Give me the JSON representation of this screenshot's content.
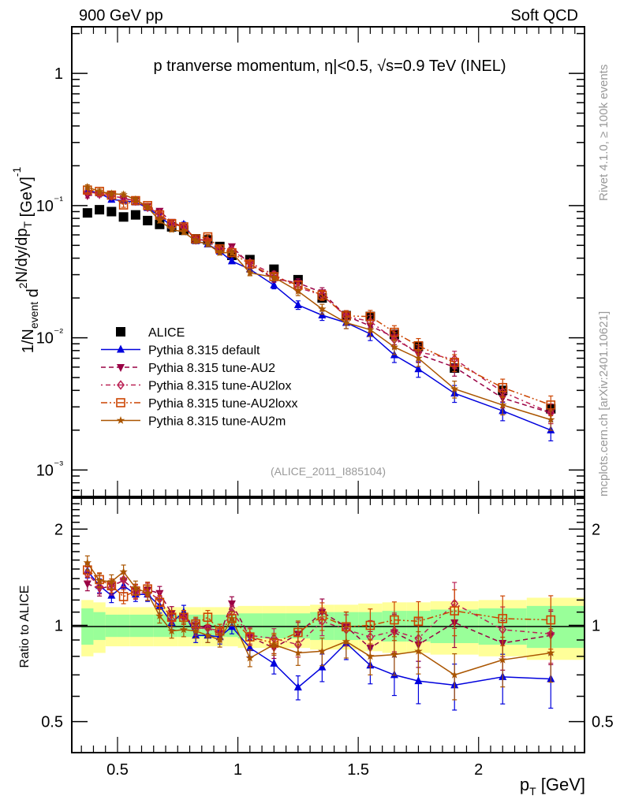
{
  "header": {
    "left": "900 GeV pp",
    "right": "Soft QCD",
    "side_top": "Rivet 4.1.0, ≥ 100k events",
    "side_bottom": "mcplots.cern.ch [arXiv:2401.10621]"
  },
  "chart_data": [
    {
      "type": "line",
      "scale": "log",
      "title": "p tranverse momentum, η|<0.5, √s=0.9 TeV (INEL)",
      "ylabel": "1/N_event d²N/dy/dp_T [GeV]⁻¹",
      "xlabel": "p_T [GeV]",
      "annotation": "(ALICE_2011_I885104)",
      "xlim": [
        0.31,
        2.44
      ],
      "ylim": [
        0.00063,
        2.25
      ],
      "yticks": [
        {
          "v": 1,
          "label": "1"
        },
        {
          "v": 0.1,
          "label": "10⁻¹"
        },
        {
          "v": 0.01,
          "label": "10⁻²"
        },
        {
          "v": 0.001,
          "label": "10⁻³"
        }
      ],
      "legend_position": "bottom-left",
      "x": [
        0.375,
        0.425,
        0.475,
        0.525,
        0.575,
        0.625,
        0.675,
        0.725,
        0.775,
        0.825,
        0.875,
        0.925,
        0.975,
        1.05,
        1.15,
        1.25,
        1.35,
        1.45,
        1.55,
        1.65,
        1.75,
        1.9,
        2.1,
        2.3
      ],
      "series": [
        {
          "name": "ALICE",
          "color": "#000000",
          "marker": "square",
          "dash": "none",
          "values": [
            0.088,
            0.093,
            0.09,
            0.082,
            0.085,
            0.077,
            0.072,
            0.069,
            0.065,
            0.056,
            0.055,
            0.049,
            0.042,
            0.039,
            0.033,
            0.0275,
            0.02,
            0.0147,
            0.0145,
            0.0106,
            0.0086,
            0.0059,
            0.004,
            0.0029
          ]
        },
        {
          "name": "Pythia 8.315 default",
          "color": "#0000dd",
          "marker": "triangle-up",
          "dash": "solid",
          "values": [
            0.13,
            0.124,
            0.111,
            0.109,
            0.106,
            0.096,
            0.083,
            0.07,
            0.072,
            0.054,
            0.051,
            0.045,
            0.038,
            0.033,
            0.025,
            0.0177,
            0.0148,
            0.013,
            0.0107,
            0.0074,
            0.0058,
            0.0038,
            0.0028,
            0.002
          ]
        },
        {
          "name": "Pythia 8.315 tune-AU2",
          "color": "#990044",
          "marker": "triangle-down",
          "dash": "dashed",
          "values": [
            0.119,
            0.121,
            0.12,
            0.113,
            0.109,
            0.099,
            0.091,
            0.075,
            0.069,
            0.056,
            0.054,
            0.046,
            0.049,
            0.036,
            0.028,
            0.026,
            0.022,
            0.0146,
            0.0123,
            0.0101,
            0.0075,
            0.006,
            0.0035,
            0.0027
          ]
        },
        {
          "name": "Pythia 8.315 tune-AU2lox",
          "color": "#bb2255",
          "marker": "diamond-open",
          "dash": "dashdot",
          "values": [
            0.127,
            0.123,
            0.118,
            0.114,
            0.108,
            0.097,
            0.087,
            0.072,
            0.069,
            0.055,
            0.054,
            0.047,
            0.046,
            0.037,
            0.03,
            0.024,
            0.021,
            0.0145,
            0.0133,
            0.0097,
            0.0078,
            0.0069,
            0.0039,
            0.0027
          ]
        },
        {
          "name": "Pythia 8.315 tune-AU2loxx",
          "color": "#cc4400",
          "marker": "square-open",
          "dash": "dashdotdot",
          "values": [
            0.131,
            0.128,
            0.12,
            0.101,
            0.109,
            0.1,
            0.085,
            0.073,
            0.069,
            0.056,
            0.058,
            0.047,
            0.044,
            0.036,
            0.029,
            0.025,
            0.021,
            0.0146,
            0.0145,
            0.011,
            0.0087,
            0.0065,
            0.0042,
            0.0031
          ]
        },
        {
          "name": "Pythia 8.315 tune-AU2m",
          "color": "#aa5500",
          "marker": "star",
          "dash": "solid",
          "values": [
            0.138,
            0.128,
            0.123,
            0.121,
            0.111,
            0.097,
            0.077,
            0.066,
            0.063,
            0.054,
            0.051,
            0.044,
            0.044,
            0.031,
            0.0287,
            0.0225,
            0.0165,
            0.013,
            0.0115,
            0.0085,
            0.007,
            0.0041,
            0.0031,
            0.0024
          ]
        }
      ]
    },
    {
      "type": "line",
      "scale": "log",
      "ylabel": "Ratio to ALICE",
      "xlabel": "p_T [GeV]",
      "xlim": [
        0.31,
        2.44
      ],
      "ylim": [
        0.4,
        2.5
      ],
      "xticks": [
        {
          "v": 0.5,
          "label": "0.5"
        },
        {
          "v": 1,
          "label": "1"
        },
        {
          "v": 1.5,
          "label": "1.5"
        },
        {
          "v": 2,
          "label": "2"
        }
      ],
      "yticks": [
        {
          "v": 2,
          "label": "2"
        },
        {
          "v": 1,
          "label": "1"
        },
        {
          "v": 0.5,
          "label": "0.5"
        }
      ],
      "band_colors": {
        "stat": "#99ff99",
        "total": "#ffff99"
      },
      "band_edges": [
        0.35,
        0.4,
        0.45,
        0.5,
        0.55,
        0.6,
        0.65,
        0.7,
        0.75,
        0.8,
        0.85,
        0.9,
        0.95,
        1.0,
        1.1,
        1.2,
        1.3,
        1.4,
        1.5,
        1.6,
        1.7,
        1.8,
        2.0,
        2.2,
        2.44
      ],
      "band_stat": [
        0.13,
        0.1,
        0.08,
        0.08,
        0.08,
        0.08,
        0.08,
        0.08,
        0.08,
        0.08,
        0.08,
        0.08,
        0.08,
        0.09,
        0.09,
        0.09,
        0.1,
        0.1,
        0.1,
        0.11,
        0.11,
        0.12,
        0.13,
        0.15
      ],
      "band_total": [
        0.2,
        0.18,
        0.14,
        0.14,
        0.14,
        0.14,
        0.14,
        0.14,
        0.14,
        0.14,
        0.14,
        0.14,
        0.14,
        0.15,
        0.15,
        0.15,
        0.16,
        0.16,
        0.17,
        0.18,
        0.18,
        0.19,
        0.2,
        0.22
      ],
      "x": [
        0.375,
        0.425,
        0.475,
        0.525,
        0.575,
        0.625,
        0.675,
        0.725,
        0.775,
        0.825,
        0.875,
        0.925,
        0.975,
        1.05,
        1.15,
        1.25,
        1.35,
        1.45,
        1.55,
        1.65,
        1.75,
        1.9,
        2.1,
        2.3
      ],
      "series": [
        {
          "name": "Pythia 8.315 default",
          "color": "#0000dd",
          "marker": "triangle-up",
          "dash": "solid",
          "values": [
            1.48,
            1.33,
            1.24,
            1.33,
            1.25,
            1.25,
            1.15,
            1.02,
            1.1,
            0.93,
            0.93,
            0.92,
            0.99,
            0.85,
            0.76,
            0.64,
            0.74,
            0.88,
            0.75,
            0.7,
            0.67,
            0.65,
            0.69,
            0.68
          ]
        },
        {
          "name": "Pythia 8.315 tune-AU2",
          "color": "#990044",
          "marker": "triangle-down",
          "dash": "dashed",
          "values": [
            1.35,
            1.3,
            1.33,
            1.38,
            1.28,
            1.29,
            1.26,
            1.09,
            1.06,
            1.0,
            0.98,
            0.94,
            1.17,
            0.92,
            0.85,
            0.94,
            1.1,
            0.99,
            0.85,
            0.95,
            0.87,
            1.02,
            0.88,
            0.93
          ]
        },
        {
          "name": "Pythia 8.315 tune-AU2lox",
          "color": "#bb2255",
          "marker": "diamond-open",
          "dash": "dashdot",
          "values": [
            1.45,
            1.32,
            1.31,
            1.39,
            1.27,
            1.26,
            1.21,
            1.04,
            1.06,
            0.98,
            0.98,
            0.96,
            1.1,
            0.93,
            0.91,
            0.87,
            1.03,
            0.97,
            0.92,
            0.96,
            0.91,
            1.17,
            0.97,
            0.94
          ]
        },
        {
          "name": "Pythia 8.315 tune-AU2loxx",
          "color": "#cc4400",
          "marker": "square-open",
          "dash": "dashdotdot",
          "values": [
            1.49,
            1.39,
            1.33,
            1.23,
            1.28,
            1.3,
            1.18,
            1.06,
            1.06,
            1.01,
            1.06,
            0.96,
            1.05,
            0.92,
            0.88,
            0.95,
            1.07,
            0.99,
            1.0,
            1.04,
            1.03,
            1.11,
            1.05,
            1.04
          ]
        },
        {
          "name": "Pythia 8.315 tune-AU2m",
          "color": "#aa5500",
          "marker": "star",
          "dash": "solid",
          "values": [
            1.57,
            1.38,
            1.37,
            1.47,
            1.31,
            1.26,
            1.07,
            0.96,
            0.97,
            0.96,
            0.93,
            0.9,
            1.05,
            0.79,
            0.87,
            0.82,
            0.83,
            0.89,
            0.8,
            0.81,
            0.83,
            0.7,
            0.78,
            0.82
          ]
        }
      ]
    }
  ]
}
